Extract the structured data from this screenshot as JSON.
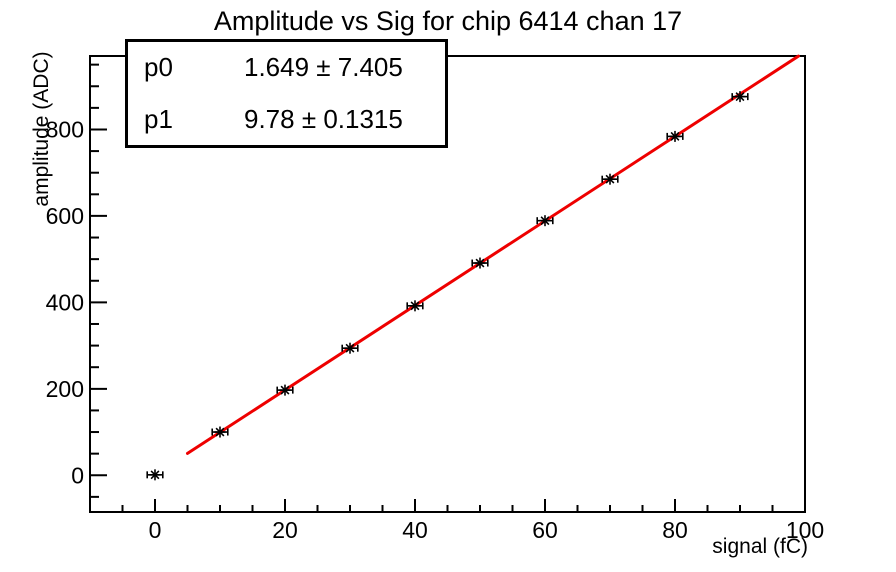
{
  "chart_data": {
    "type": "scatter",
    "title": "Amplitude vs Sig for chip 6414 chan 17",
    "xlabel": "signal (fC)",
    "ylabel": "amplitude (ADC)",
    "xlim": [
      -10,
      100
    ],
    "ylim": [
      -85,
      970
    ],
    "x_major_ticks": [
      0,
      20,
      40,
      60,
      80,
      100
    ],
    "x_minor_step": 5,
    "y_major_ticks": [
      0,
      200,
      400,
      600,
      800
    ],
    "y_minor_step": 50,
    "grid": false,
    "points": {
      "x": [
        0,
        10,
        20,
        30,
        40,
        50,
        60,
        70,
        80,
        90
      ],
      "y": [
        1,
        100,
        197,
        294,
        392,
        491,
        589,
        685,
        784,
        876
      ],
      "xerr": 1.2,
      "marker": "asterisk",
      "color": "#000000"
    },
    "fit_line": {
      "p0": 1.649,
      "p1": 9.78,
      "x_start": 5,
      "x_end": 99,
      "color": "#ee0000"
    },
    "stats_box": {
      "rows": [
        {
          "label": "p0",
          "value": "1.649 ± 7.405"
        },
        {
          "label": "p1",
          "value": "9.78 ± 0.1315"
        }
      ]
    }
  }
}
